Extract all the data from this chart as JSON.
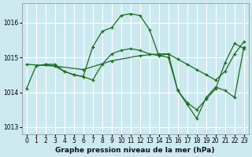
{
  "title": "Graphe pression niveau de la mer (hPa)",
  "background_color": "#cce9f0",
  "line_color": "#1a6b1a",
  "grid_color": "#ffffff",
  "xlim": [
    -0.5,
    23.5
  ],
  "ylim": [
    1012.8,
    1016.55
  ],
  "yticks": [
    1013,
    1014,
    1015,
    1016
  ],
  "xticks": [
    0,
    1,
    2,
    3,
    4,
    5,
    6,
    7,
    8,
    9,
    10,
    11,
    12,
    13,
    14,
    15,
    16,
    17,
    18,
    19,
    20,
    21,
    22,
    23
  ],
  "series": [
    {
      "x": [
        0,
        1,
        2,
        3,
        4,
        5,
        6,
        7,
        8,
        9,
        10,
        11,
        12,
        13,
        14,
        15,
        16,
        17,
        18,
        19,
        20,
        21,
        22,
        23
      ],
      "y": [
        1014.1,
        1014.75,
        1014.8,
        1014.8,
        1014.6,
        1014.5,
        1014.45,
        1015.3,
        1015.75,
        1015.85,
        1016.2,
        1016.25,
        1016.2,
        1015.8,
        1015.05,
        1015.1,
        1014.05,
        1013.65,
        1013.25,
        1013.85,
        1014.15,
        1014.05,
        1013.85,
        1015.3
      ]
    },
    {
      "x": [
        0,
        3,
        6,
        9,
        12,
        14,
        15,
        16,
        17,
        18,
        19,
        20,
        21,
        22,
        23
      ],
      "y": [
        1014.8,
        1014.75,
        1014.65,
        1014.9,
        1015.05,
        1015.1,
        1015.1,
        1014.95,
        1014.8,
        1014.65,
        1014.5,
        1014.35,
        1014.6,
        1015.1,
        1015.45
      ]
    },
    {
      "x": [
        2,
        3,
        4,
        5,
        6,
        7,
        8,
        9,
        10,
        11,
        12,
        13,
        14,
        15,
        16,
        17,
        18,
        19,
        20,
        21,
        22,
        23
      ],
      "y": [
        1014.8,
        1014.75,
        1014.6,
        1014.5,
        1014.45,
        1014.35,
        1014.8,
        1015.1,
        1015.2,
        1015.25,
        1015.2,
        1015.1,
        1015.05,
        1015.0,
        1014.05,
        1013.7,
        1013.5,
        1013.8,
        1014.1,
        1014.85,
        1015.4,
        1015.25
      ]
    }
  ]
}
